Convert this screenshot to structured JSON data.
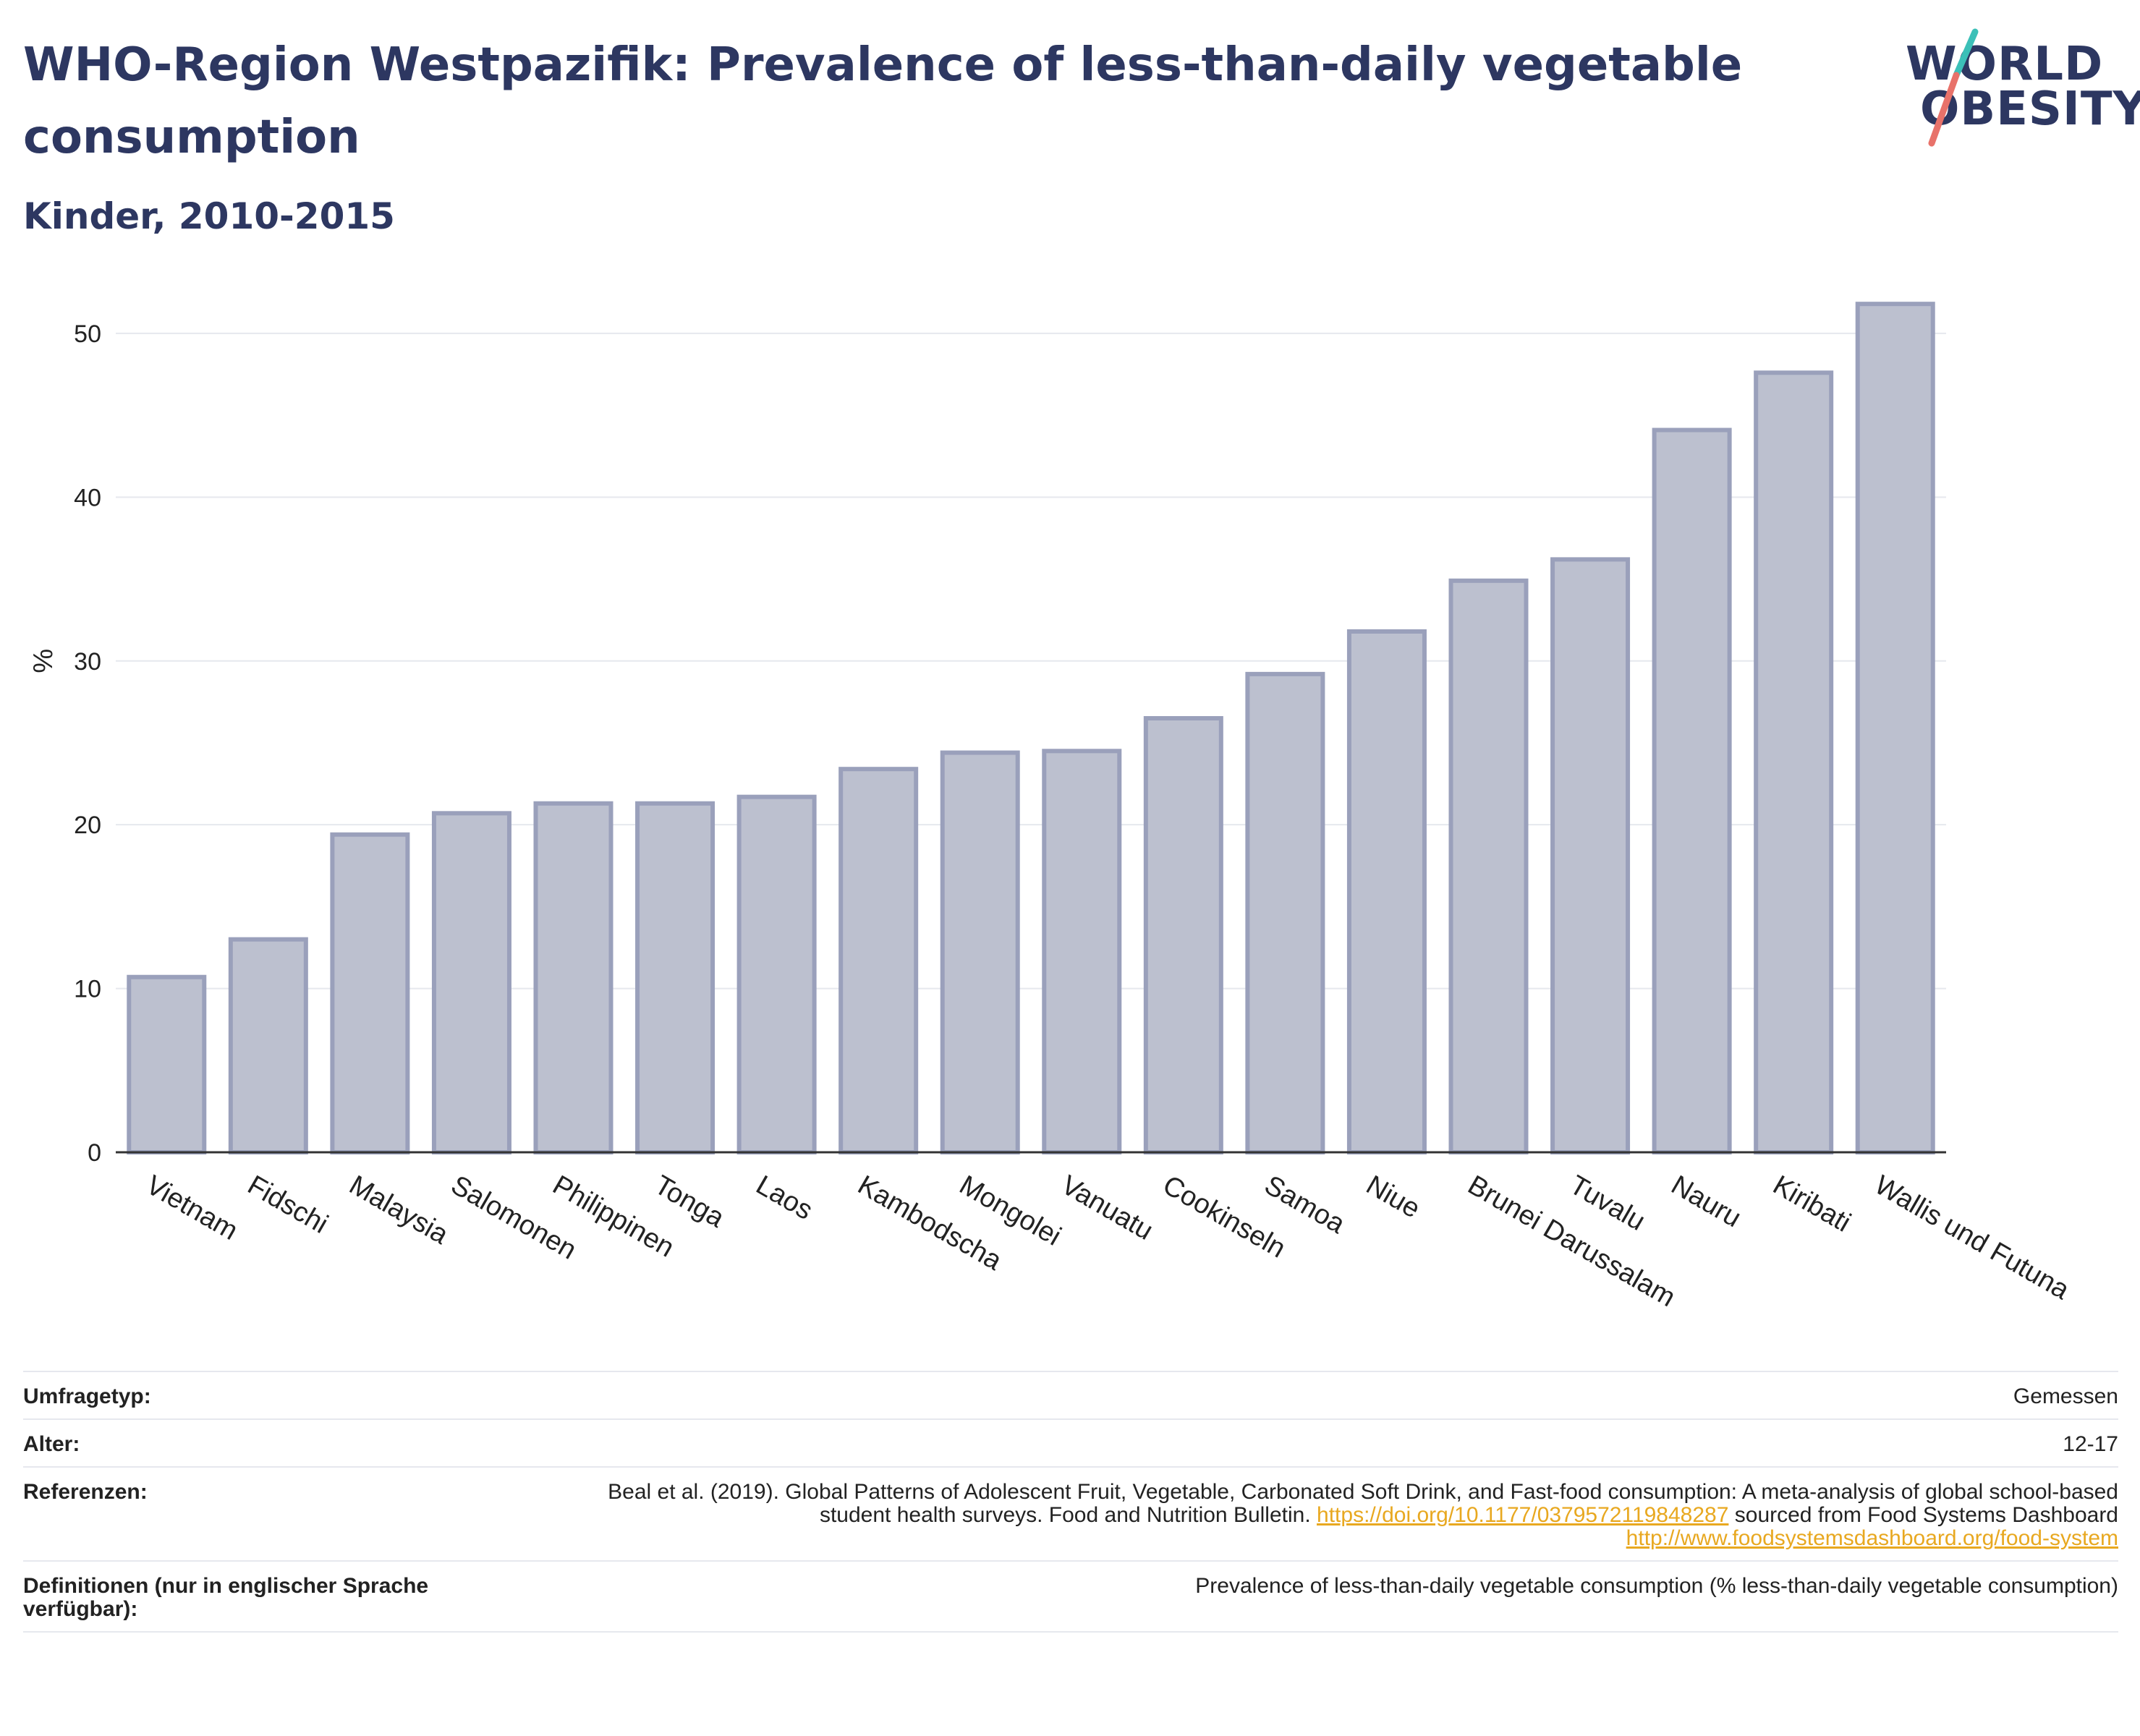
{
  "header": {
    "title": "WHO-Region Westpazifik: Prevalence of less-than-daily vegetable consumption",
    "subtitle": "Kinder, 2010-2015"
  },
  "logo": {
    "line1": "WORLD",
    "line2": "OBESITY"
  },
  "colors": {
    "bar_fill": "#bcc0cf",
    "bar_stroke": "#9aa0bb",
    "title": "#2d3761",
    "link": "#e8a820",
    "grid": "#e6e8ee"
  },
  "chart_data": {
    "type": "bar",
    "title": "",
    "xlabel": "",
    "ylabel": "%",
    "ylim": [
      0,
      53
    ],
    "yticks": [
      0,
      10,
      20,
      30,
      40,
      50
    ],
    "grid": true,
    "categories": [
      "Vietnam",
      "Fidschi",
      "Malaysia",
      "Salomonen",
      "Philippinen",
      "Tonga",
      "Laos",
      "Kambodscha",
      "Mongolei",
      "Vanuatu",
      "Cookinseln",
      "Samoa",
      "Niue",
      "Brunei Darussalam",
      "Tuvalu",
      "Nauru",
      "Kiribati",
      "Wallis und Futuna"
    ],
    "values": [
      10.7,
      13.0,
      19.4,
      20.7,
      21.3,
      21.3,
      21.7,
      23.4,
      24.4,
      24.5,
      26.5,
      29.2,
      31.8,
      34.9,
      36.2,
      44.1,
      47.6,
      51.8
    ]
  },
  "meta": {
    "survey_label": "Umfragetyp:",
    "survey_value": "Gemessen",
    "age_label": "Alter:",
    "age_value": "12-17",
    "ref_label": "Referenzen:",
    "ref_text_1": "Beal et al. (2019). Global Patterns of Adolescent Fruit, Vegetable, Carbonated Soft Drink, and Fast-food consumption: A meta-analysis of global school-based student health surveys. Food and Nutrition Bulletin.",
    "ref_link_1": "https://doi.org/10.1177/0379572119848287",
    "ref_text_2": "sourced from Food Systems Dashboard",
    "ref_link_2": "http://www.foodsystemsdashboard.org/food-system",
    "def_label": "Definitionen (nur in englischer Sprache verfügbar):",
    "def_value": "Prevalence of less-than-daily vegetable consumption (% less-than-daily vegetable consumption)"
  }
}
